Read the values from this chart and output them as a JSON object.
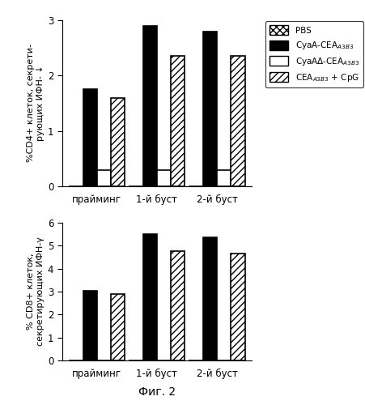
{
  "top_chart": {
    "ylabel_line1": "%CD4+ клеток, секрети-",
    "ylabel_line2": "рующих ИФН- ↓",
    "xlabel_groups": [
      "прайминг",
      "1-й буст",
      "2-й буст"
    ],
    "ylim": [
      0,
      3
    ],
    "yticks": [
      0,
      1,
      2,
      3
    ],
    "series": {
      "PBS": [
        0,
        0,
        0
      ],
      "CyaA": [
        1.75,
        2.9,
        2.8
      ],
      "CyaAD": [
        0.3,
        0.3,
        0.3
      ],
      "CEACpG": [
        1.6,
        2.35,
        2.35
      ]
    }
  },
  "bottom_chart": {
    "ylabel_line1": "% CD8+ клеток,",
    "ylabel_line2": "секретирующих ИФН-γ",
    "xlabel_groups": [
      "прайминг",
      "1-й буст",
      "2-й буст"
    ],
    "ylim": [
      0,
      6
    ],
    "yticks": [
      0,
      1,
      2,
      3,
      4,
      5,
      6
    ],
    "series": {
      "PBS": [
        0,
        0,
        0
      ],
      "CyaA": [
        3.05,
        5.5,
        5.35
      ],
      "CyaAD": [
        0,
        0,
        0
      ],
      "CEACpG": [
        2.88,
        4.78,
        4.65
      ]
    }
  },
  "fig_label": "Фиг. 2",
  "bar_width": 0.28,
  "group_centers": [
    0.5,
    1.7,
    2.9
  ]
}
